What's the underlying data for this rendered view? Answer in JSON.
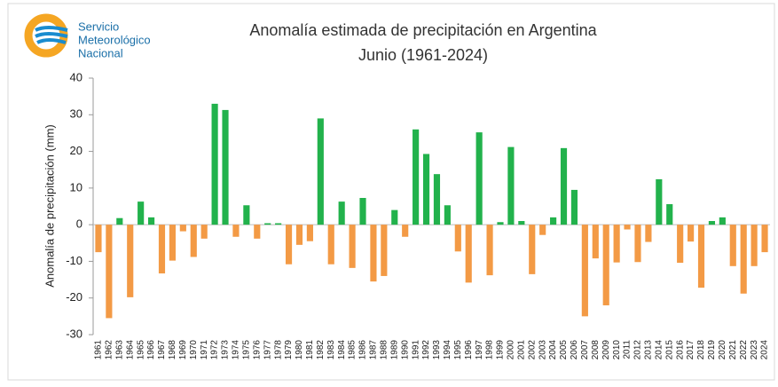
{
  "logo": {
    "lines": [
      "Servicio",
      "Meteorológico",
      "Nacional"
    ]
  },
  "chart_data": {
    "type": "bar",
    "title": "Anomalía estimada de precipitación en Argentina",
    "subtitle": "Junio (1961-2024)",
    "y_label": "Anomalía de precipitación (mm)",
    "categories": [
      "1961",
      "1962",
      "1963",
      "1964",
      "1965",
      "1966",
      "1967",
      "1968",
      "1969",
      "1970",
      "1971",
      "1972",
      "1973",
      "1974",
      "1975",
      "1976",
      "1977",
      "1978",
      "1979",
      "1980",
      "1981",
      "1982",
      "1983",
      "1984",
      "1985",
      "1986",
      "1987",
      "1988",
      "1989",
      "1990",
      "1991",
      "1992",
      "1993",
      "1994",
      "1995",
      "1996",
      "1997",
      "1998",
      "1999",
      "2000",
      "2001",
      "2002",
      "2003",
      "2004",
      "2005",
      "2006",
      "2007",
      "2008",
      "2009",
      "2010",
      "2011",
      "2012",
      "2013",
      "2014",
      "2015",
      "2016",
      "2017",
      "2018",
      "2019",
      "2020",
      "2021",
      "2022",
      "2023",
      "2024"
    ],
    "values": [
      -7.5,
      -25.5,
      1.8,
      -19.8,
      6.3,
      2,
      -13.3,
      -9.8,
      -1.8,
      -8.8,
      -3.8,
      33,
      31.3,
      -3.3,
      5.3,
      -3.8,
      0.4,
      0.4,
      -10.8,
      -5.5,
      -4.5,
      29,
      -10.8,
      6.3,
      -11.8,
      7.3,
      -15.5,
      -14,
      4,
      -3.3,
      26,
      19.3,
      13.8,
      5.3,
      -7.3,
      -15.8,
      25.2,
      -13.8,
      0.7,
      21.2,
      1,
      -13.5,
      -2.8,
      2,
      20.9,
      9.5,
      -25,
      -9.2,
      -22,
      -10.3,
      -1.3,
      -10.2,
      -4.7,
      12.4,
      5.6,
      -10.4,
      -4.6,
      -17.2,
      1,
      2,
      -11.3,
      -18.8,
      -11.3,
      -7.5
    ],
    "positive_color": "#22b24c",
    "negative_color": "#f39a45",
    "ylim": [
      -30,
      40
    ],
    "yticks": [
      -30,
      -20,
      -10,
      0,
      10,
      20,
      30,
      40
    ],
    "grid": false
  }
}
